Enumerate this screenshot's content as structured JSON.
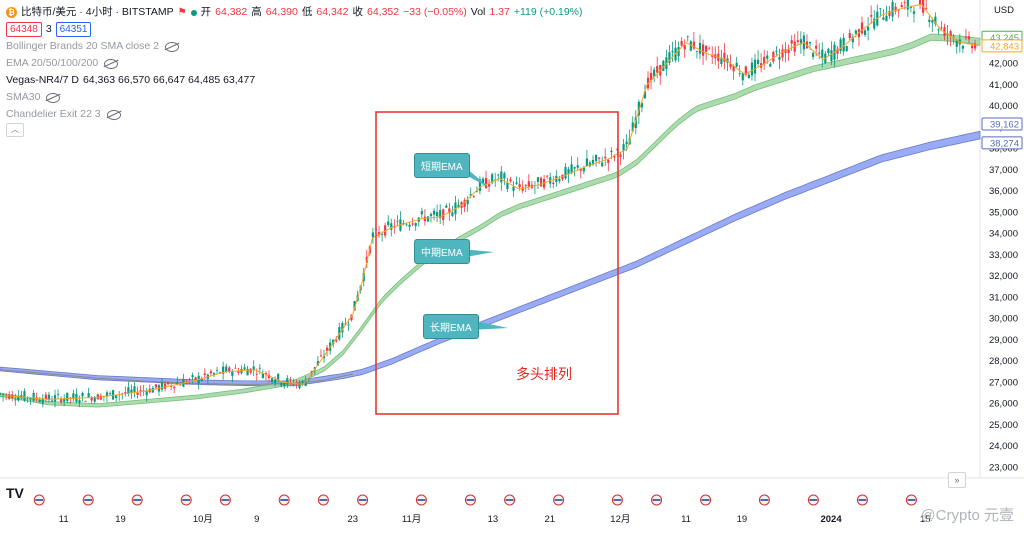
{
  "header": {
    "symbol": "比特币/美元 · 4小时 · BITSTAMP",
    "open_label": "开",
    "open": "64,382",
    "high_label": "高",
    "high": "64,390",
    "low_label": "低",
    "low": "64,342",
    "close_label": "收",
    "close": "64,352",
    "change": "−33 (−0.05%)",
    "vol_label": "Vol",
    "vol": "1.37",
    "vol_change": "+119 (+0.19%)",
    "bid": "64348",
    "spread": "3",
    "ask": "64351"
  },
  "indicators": [
    {
      "label": "Bollinger Brands 20 SMA close 2",
      "muted": true
    },
    {
      "label": "EMA 20/50/100/200",
      "muted": true
    },
    {
      "label": "Vegas-NR4/7 D",
      "values": "64,363  66,570  66,647  64,485  63,477",
      "muted": false
    },
    {
      "label": "SMA30",
      "muted": true
    },
    {
      "label": "Chandelier Exit 22 3",
      "muted": true
    }
  ],
  "callouts": {
    "short": "短期EMA",
    "mid": "中期EMA",
    "long": "长期EMA"
  },
  "annotation": "多头排列",
  "currency": "USD",
  "watermark": "@Crypto 元壹",
  "logo": "TV",
  "colors": {
    "up": "#089981",
    "down": "#f23645",
    "short_ema": "#f5a623",
    "mid_band": "#a5d6a7",
    "mid_band_edge": "#66bb6a",
    "long_band": "#8ea2f5",
    "long_band_edge": "#5c6bc0",
    "sma": "#8d8d8d",
    "box": "#e53935",
    "callout": "#4fb6c0"
  },
  "chart_data": {
    "type": "line",
    "ylim": [
      22500,
      45000
    ],
    "y_ticks": [
      23000,
      24000,
      25000,
      26000,
      27000,
      28000,
      29000,
      30000,
      31000,
      32000,
      33000,
      34000,
      35000,
      36000,
      37000,
      38000,
      39000,
      40000,
      41000,
      42000
    ],
    "x_ticks": [
      "11",
      "19",
      "10月",
      "9",
      "23",
      "11月",
      "13",
      "21",
      "12月",
      "11",
      "19",
      "2024",
      "15"
    ],
    "x_tick_pos": [
      0.065,
      0.123,
      0.207,
      0.262,
      0.36,
      0.42,
      0.503,
      0.561,
      0.633,
      0.7,
      0.757,
      0.848,
      0.944
    ],
    "price_tags": [
      {
        "value": 43245,
        "color": "#4caf50"
      },
      {
        "value": 42843,
        "color": "#f5a623"
      },
      {
        "value": 39162,
        "color": "#5c6bc0"
      },
      {
        "value": 38274,
        "color": "#5c6bc0"
      }
    ],
    "series": [
      {
        "name": "短期EMA",
        "x": [
          0.0,
          0.05,
          0.1,
          0.15,
          0.2,
          0.23,
          0.26,
          0.29,
          0.31,
          0.33,
          0.345,
          0.36,
          0.37,
          0.38,
          0.4,
          0.43,
          0.45,
          0.47,
          0.49,
          0.51,
          0.53,
          0.55,
          0.58,
          0.6,
          0.62,
          0.64,
          0.65,
          0.66,
          0.68,
          0.7,
          0.72,
          0.74,
          0.76,
          0.78,
          0.8,
          0.82,
          0.84,
          0.86,
          0.88,
          0.9,
          0.92,
          0.94,
          0.96,
          0.98,
          1.0
        ],
        "values": [
          26400,
          26200,
          26300,
          26600,
          27100,
          27500,
          27600,
          27000,
          26900,
          28200,
          29200,
          30200,
          31800,
          33800,
          34300,
          34700,
          34800,
          35300,
          36200,
          36600,
          36100,
          36300,
          36800,
          37200,
          37500,
          38000,
          39500,
          41000,
          42000,
          43000,
          42500,
          42200,
          41500,
          42000,
          42600,
          43000,
          42200,
          42800,
          43600,
          44300,
          44600,
          44800,
          43600,
          43000,
          42850
        ]
      },
      {
        "name": "中期EMA",
        "x": [
          0.0,
          0.05,
          0.1,
          0.15,
          0.2,
          0.25,
          0.3,
          0.33,
          0.35,
          0.37,
          0.39,
          0.41,
          0.43,
          0.45,
          0.47,
          0.49,
          0.51,
          0.53,
          0.55,
          0.57,
          0.59,
          0.61,
          0.63,
          0.65,
          0.67,
          0.69,
          0.71,
          0.73,
          0.75,
          0.77,
          0.79,
          0.81,
          0.83,
          0.85,
          0.87,
          0.89,
          0.91,
          0.93,
          0.95,
          0.97,
          1.0
        ],
        "values": [
          26400,
          26000,
          25900,
          26100,
          26300,
          26600,
          27000,
          27600,
          28400,
          29600,
          30900,
          31800,
          32600,
          33200,
          33800,
          34300,
          34900,
          35300,
          35600,
          35900,
          36200,
          36500,
          36800,
          37400,
          38300,
          39200,
          39900,
          40200,
          40500,
          40900,
          41200,
          41500,
          41800,
          42000,
          42200,
          42400,
          42600,
          42900,
          43300,
          43250,
          43100
        ]
      },
      {
        "name": "长期EMA",
        "x": [
          0.0,
          0.05,
          0.1,
          0.15,
          0.2,
          0.25,
          0.3,
          0.35,
          0.37,
          0.4,
          0.45,
          0.5,
          0.55,
          0.6,
          0.65,
          0.7,
          0.75,
          0.8,
          0.85,
          0.9,
          0.95,
          1.0
        ],
        "values": [
          27600,
          27400,
          27200,
          27100,
          27000,
          26950,
          26950,
          27300,
          27500,
          28000,
          29000,
          29900,
          30800,
          31700,
          32600,
          33700,
          34800,
          35800,
          36700,
          37600,
          38200,
          38700
        ]
      },
      {
        "name": "SMA",
        "x": [
          0.0,
          0.05,
          0.1,
          0.15,
          0.2,
          0.25,
          0.3,
          0.33,
          0.36
        ],
        "values": [
          27600,
          27400,
          27200,
          27050,
          26950,
          26900,
          26950,
          27100,
          27400
        ]
      }
    ]
  }
}
